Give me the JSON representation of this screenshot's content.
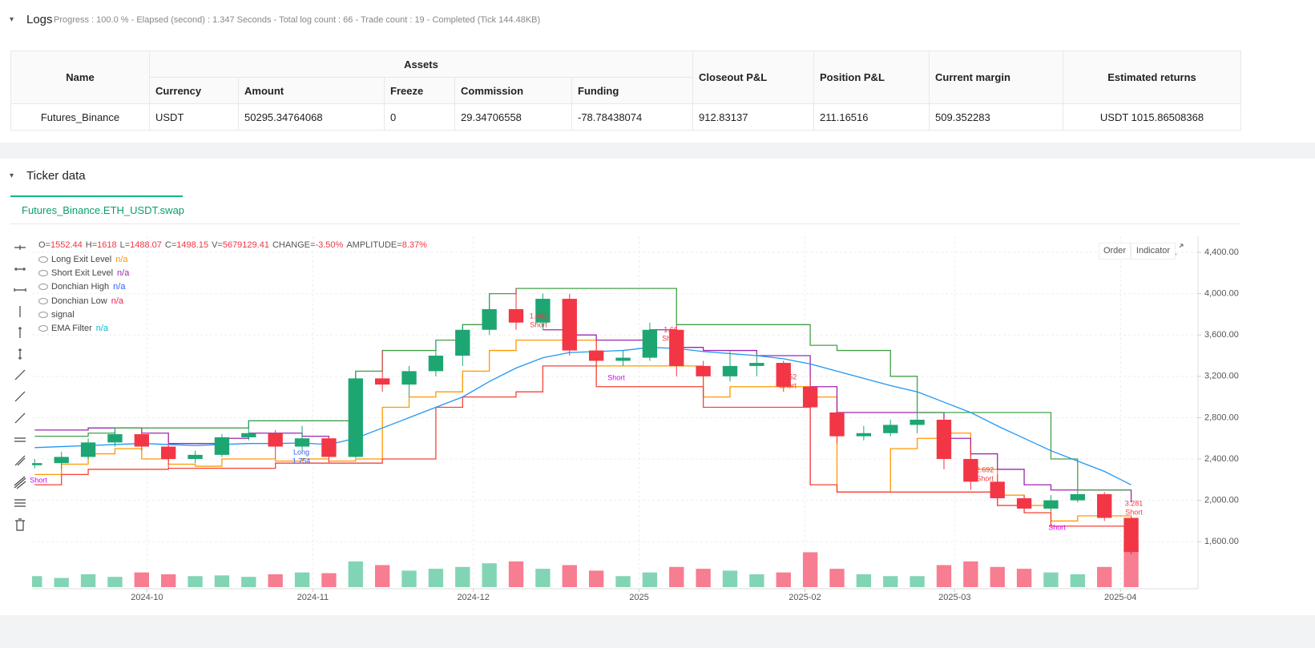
{
  "logs": {
    "title": "Logs",
    "status": "Progress : 100.0 % - Elapsed (second) : 1.347 Seconds - Total log count : 66 - Trade count : 19 - Completed (Tick 144.48KB)"
  },
  "table": {
    "group_header": "Assets",
    "headers": [
      "Name",
      "Currency",
      "Amount",
      "Freeze",
      "Commission",
      "Funding",
      "Closeout P&L",
      "Position P&L",
      "Current margin",
      "Estimated returns"
    ],
    "rows": [
      [
        "Futures_Binance",
        "USDT",
        "50295.34764068",
        "0",
        "29.34706558",
        "-78.78438074",
        "912.83137",
        "211.16516",
        "509.352283",
        "USDT 1015.86508368"
      ]
    ]
  },
  "ticker": {
    "title": "Ticker data",
    "tab": "Futures_Binance.ETH_USDT.swap",
    "buttons": [
      "Order",
      "Indicator"
    ],
    "info": [
      {
        "label": "O=",
        "value": "1552.44"
      },
      {
        "label": "H=",
        "value": "1618"
      },
      {
        "label": "L=",
        "value": "1488.07"
      },
      {
        "label": "C=",
        "value": "1498.15"
      },
      {
        "label": "V=",
        "value": "5679129.41"
      },
      {
        "label": "CHANGE=",
        "value": "-3.50%"
      },
      {
        "label": "AMPLITUDE=",
        "value": "8.37%"
      }
    ]
  },
  "chart_data": {
    "type": "candlestick",
    "xlim": [
      -0.1,
      43.5
    ],
    "xticks": [
      {
        "value": 4.2,
        "label": "2024-10"
      },
      {
        "value": 10.4,
        "label": "2024-11"
      },
      {
        "value": 16.4,
        "label": "2024-12"
      },
      {
        "value": 22.6,
        "label": "2025"
      },
      {
        "value": 28.8,
        "label": "2025-02"
      },
      {
        "value": 34.4,
        "label": "2025-03"
      },
      {
        "value": 40.6,
        "label": "2025-04"
      }
    ],
    "ylim": [
      1160,
      4555
    ],
    "yticks": [
      {
        "value": 1600,
        "label": "1,600.00"
      },
      {
        "value": 2000,
        "label": "2,000.00"
      },
      {
        "value": 2400,
        "label": "2,400.00"
      },
      {
        "value": 2800,
        "label": "2,800.00"
      },
      {
        "value": 3200,
        "label": "3,200.00"
      },
      {
        "value": 3600,
        "label": "3,600.00"
      },
      {
        "value": 4000,
        "label": "4,000.00"
      },
      {
        "value": 4400,
        "label": "4,400.00"
      }
    ],
    "grid": true,
    "up_color": "#1ea672",
    "down_color": "#f23645",
    "up_volume_color": "#82d5b4",
    "down_volume_color": "#f77d91",
    "open": [
      2340,
      2360,
      2420,
      2560,
      2640,
      2520,
      2400,
      2440,
      2610,
      2650,
      2520,
      2600,
      2420,
      3180,
      3120,
      3250,
      3400,
      3650,
      3850,
      3720,
      3950,
      3450,
      3350,
      3380,
      3650,
      3300,
      3200,
      3300,
      3330,
      3100,
      2850,
      2620,
      2650,
      2730,
      2780,
      2400,
      2180,
      2020,
      1920,
      2000,
      2060,
      1830
    ],
    "high": [
      2400,
      2470,
      2600,
      2700,
      2680,
      2560,
      2480,
      2640,
      2770,
      2680,
      2720,
      2620,
      3250,
      3450,
      3300,
      3550,
      3700,
      4000,
      4050,
      4000,
      4000,
      3550,
      3450,
      3720,
      3700,
      3350,
      3450,
      3420,
      3350,
      3200,
      2850,
      2720,
      2780,
      2850,
      2800,
      2550,
      2250,
      2050,
      2050,
      2100,
      2080,
      1840
    ],
    "low": [
      2310,
      2300,
      2400,
      2520,
      2480,
      2310,
      2360,
      2420,
      2580,
      2400,
      2480,
      2360,
      2410,
      3050,
      3000,
      3200,
      3300,
      3600,
      3650,
      3650,
      3400,
      3280,
      3300,
      3350,
      3200,
      3000,
      3150,
      3200,
      3050,
      2150,
      2550,
      2580,
      2620,
      2650,
      2300,
      2100,
      1950,
      1880,
      1900,
      1980,
      1800,
      1480
    ],
    "close": [
      2360,
      2420,
      2560,
      2640,
      2520,
      2400,
      2440,
      2610,
      2650,
      2520,
      2600,
      2420,
      3180,
      3120,
      3250,
      3400,
      3650,
      3850,
      3720,
      3950,
      3450,
      3350,
      3380,
      3650,
      3300,
      3200,
      3300,
      3330,
      3100,
      2900,
      2620,
      2650,
      2730,
      2780,
      2400,
      2180,
      2020,
      1920,
      2000,
      2060,
      1830,
      1500
    ],
    "volume": [
      30,
      25,
      35,
      28,
      40,
      35,
      30,
      32,
      28,
      35,
      40,
      38,
      70,
      60,
      45,
      50,
      55,
      65,
      70,
      50,
      60,
      45,
      30,
      40,
      55,
      50,
      45,
      35,
      40,
      95,
      50,
      35,
      30,
      30,
      60,
      70,
      55,
      50,
      40,
      35,
      55,
      120
    ],
    "series": [
      {
        "name": "Long Exit Level",
        "color": "#ff9800",
        "status": "n/a",
        "status_color": "#ff9800",
        "step": true,
        "values": [
          2250,
          2350,
          2450,
          2500,
          2400,
          2350,
          2330,
          2400,
          2400,
          2380,
          2400,
          2380,
          2400,
          2900,
          3000,
          3050,
          3250,
          3450,
          3550,
          3550,
          3550,
          3300,
          3300,
          3300,
          3300,
          3000,
          3100,
          3100,
          3100,
          3000,
          2080,
          2080,
          2500,
          2600,
          2650,
          2300,
          2050,
          1950,
          1800,
          1850,
          1850,
          1750
        ]
      },
      {
        "name": "Short Exit Level",
        "color": "#9c27b0",
        "status": "n/a",
        "status_color": "#9c27b0",
        "step": true,
        "values": [
          2680,
          2680,
          2700,
          2700,
          2650,
          2550,
          2550,
          2600,
          2650,
          2650,
          2620,
          2600,
          null,
          null,
          null,
          null,
          null,
          null,
          null,
          3650,
          3600,
          3550,
          3550,
          3650,
          3480,
          3450,
          3450,
          3400,
          3400,
          3100,
          2850,
          2850,
          2850,
          2850,
          2600,
          2450,
          2300,
          2150,
          2100,
          2100,
          2100,
          1980
        ]
      },
      {
        "name": "Donchian High",
        "color": "#43a047",
        "status": "n/a",
        "status_color": "#2962ff",
        "step": true,
        "values": [
          2620,
          2620,
          2650,
          2700,
          2700,
          2700,
          2700,
          2700,
          2770,
          2770,
          2770,
          2770,
          3250,
          3450,
          3450,
          3550,
          3700,
          4000,
          4050,
          4050,
          4050,
          4050,
          4050,
          4050,
          3700,
          3700,
          3700,
          3700,
          3700,
          3500,
          3450,
          3450,
          3200,
          2850,
          2850,
          2850,
          2850,
          2850,
          2400,
          2100,
          2100,
          2100
        ]
      },
      {
        "name": "Donchian Low",
        "color": "#f44336",
        "status": "n/a",
        "status_color": "#e91e63",
        "step": true,
        "values": [
          2150,
          2250,
          2300,
          2300,
          2300,
          2310,
          2310,
          2310,
          2310,
          2360,
          2360,
          2360,
          2360,
          2400,
          2400,
          2900,
          3000,
          3000,
          3050,
          3300,
          3300,
          3100,
          3100,
          3100,
          3100,
          2900,
          2900,
          2900,
          2900,
          2150,
          2080,
          2080,
          2080,
          2080,
          2080,
          2080,
          1950,
          1880,
          1750,
          1750,
          1750,
          1480
        ]
      },
      {
        "name": "signal"
      },
      {
        "name": "EMA Filter",
        "color": "#2196f3",
        "status": "n/a",
        "status_color": "#00bcd4",
        "step": false,
        "values": [
          2510,
          2520,
          2530,
          2540,
          2550,
          2540,
          2530,
          2540,
          2550,
          2550,
          2555,
          2540,
          2600,
          2700,
          2800,
          2900,
          3000,
          3150,
          3280,
          3380,
          3430,
          3440,
          3450,
          3480,
          3470,
          3440,
          3420,
          3400,
          3370,
          3320,
          3250,
          3180,
          3110,
          3050,
          2950,
          2850,
          2720,
          2600,
          2480,
          2380,
          2280,
          2150
        ]
      }
    ],
    "annotations": [
      {
        "text": "Short",
        "color": "#d500f9"
      },
      {
        "text": "Long",
        "value": 1.754,
        "color": "#2962ff"
      },
      {
        "value": 1.481,
        "text": "Short",
        "color": "#f23645"
      },
      {
        "text": "Short",
        "color": "#d500f9"
      },
      {
        "value": 1.66,
        "text": "Short",
        "color": "#f23645"
      },
      {
        "value": 1.852,
        "text": "Short",
        "color": "#f23645"
      },
      {
        "value": 2.692,
        "text": "Short",
        "color": "#f23645"
      },
      {
        "value": 3.281,
        "text": "Short",
        "color": "#f23645"
      },
      {
        "text": "Short",
        "color": "#d500f9"
      }
    ]
  }
}
